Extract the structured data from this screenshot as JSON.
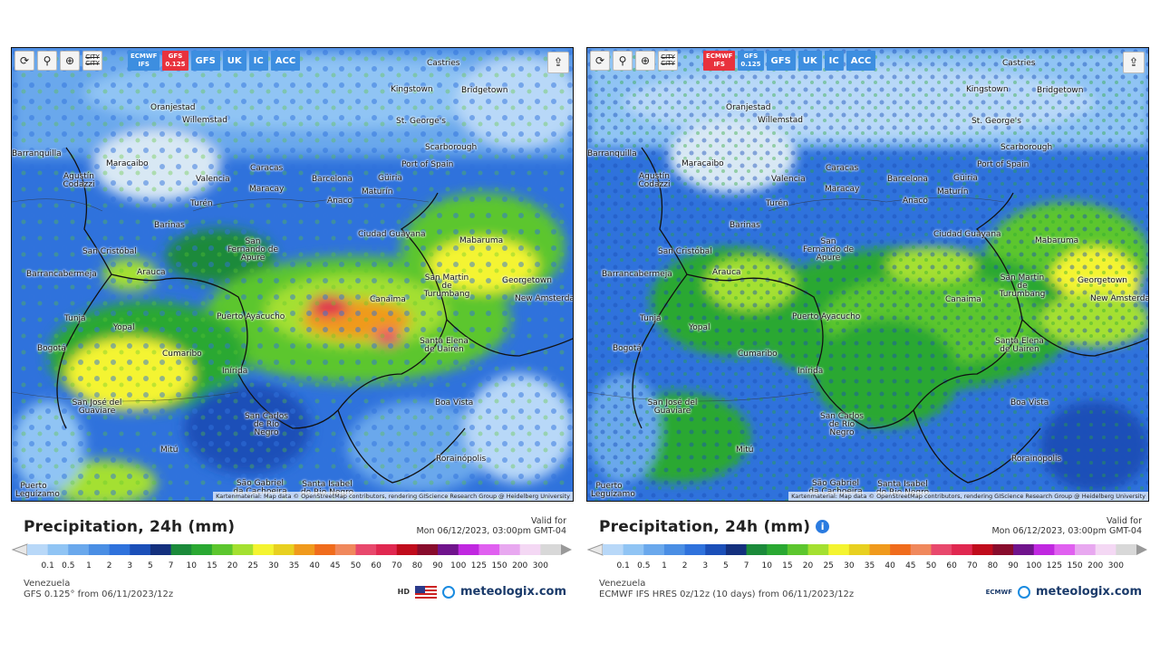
{
  "panels": [
    {
      "id": "gfs",
      "toolbar": {
        "models": [
          {
            "label": "ECMWF IFS",
            "active": false
          },
          {
            "label": "GFS 0.125",
            "active": true
          },
          {
            "label": "GFS",
            "active": false
          },
          {
            "label": "UK",
            "active": false
          },
          {
            "label": "IC",
            "active": false
          },
          {
            "label": "ACC",
            "active": false
          }
        ],
        "city_button_label": "CITY"
      },
      "title": "Precipitation, 24h (mm)",
      "valid_label": "Valid for",
      "valid_time": "Mon 06/12/2023, 03:00pm GMT-04",
      "region": "Venezuela",
      "model_info": "GFS 0.125° from 06/11/2023/12z",
      "brand": "meteologix.com",
      "badge": "HD",
      "attribution": "Kartenmaterial: Map data © OpenStreetMap contributors, rendering GIScience Research Group @ Heidelberg University"
    },
    {
      "id": "ecmwf",
      "toolbar": {
        "models": [
          {
            "label": "ECMWF IFS",
            "active": true
          },
          {
            "label": "GFS 0.125",
            "active": false
          },
          {
            "label": "GFS",
            "active": false
          },
          {
            "label": "UK",
            "active": false
          },
          {
            "label": "IC",
            "active": false
          },
          {
            "label": "ACC",
            "active": false
          }
        ],
        "city_button_label": "CITY"
      },
      "title": "Precipitation, 24h (mm)",
      "valid_label": "Valid for",
      "valid_time": "Mon 06/12/2023, 03:00pm GMT-04",
      "region": "Venezuela",
      "model_info": "ECMWF IFS HRES 0z/12z (10 days) from 06/11/2023/12z",
      "brand": "meteologix.com",
      "badge": "ECMWF",
      "attribution": "Kartenmaterial: Map data © OpenStreetMap contributors, rendering GIScience Research Group @ Heidelberg University"
    }
  ],
  "scale": {
    "ticks": [
      "0.1",
      "0.5",
      "1",
      "2",
      "3",
      "5",
      "7",
      "10",
      "15",
      "20",
      "25",
      "30",
      "35",
      "40",
      "45",
      "50",
      "60",
      "70",
      "80",
      "90",
      "100",
      "125",
      "150",
      "200",
      "300"
    ],
    "colors": [
      "#b8d8f8",
      "#90c4f4",
      "#6aa8ec",
      "#4a8ee4",
      "#2f72dc",
      "#1b4fb8",
      "#14307e",
      "#1b8a3a",
      "#2aa832",
      "#5cc62e",
      "#a4e030",
      "#f4f430",
      "#e8d020",
      "#f09a1c",
      "#f06c1c",
      "#f0885c",
      "#e8486c",
      "#e02850",
      "#c00c1c",
      "#880c2c",
      "#70148c",
      "#c028e0",
      "#e060f0",
      "#e8a8f0",
      "#f4d8f4",
      "#d8d8d8"
    ]
  },
  "cities": [
    {
      "name": "Castries"
    },
    {
      "name": "Kingstown"
    },
    {
      "name": "Bridgetown"
    },
    {
      "name": "Oranjestad"
    },
    {
      "name": "Willemstad"
    },
    {
      "name": "St. George's"
    },
    {
      "name": "Scarborough"
    },
    {
      "name": "Port of Spain"
    },
    {
      "name": "Barranquilla"
    },
    {
      "name": "Maracaibo"
    },
    {
      "name": "Agustín Codazzi"
    },
    {
      "name": "Caracas"
    },
    {
      "name": "Valencia"
    },
    {
      "name": "Maracay"
    },
    {
      "name": "Barcelona"
    },
    {
      "name": "Güiria"
    },
    {
      "name": "Maturín"
    },
    {
      "name": "Anaco"
    },
    {
      "name": "Turén"
    },
    {
      "name": "Barinas"
    },
    {
      "name": "San Fernando de Apure"
    },
    {
      "name": "Ciudad Guayana"
    },
    {
      "name": "Mabaruma"
    },
    {
      "name": "San Cristóbal"
    },
    {
      "name": "Barrancabermeja"
    },
    {
      "name": "Arauca"
    },
    {
      "name": "San Martin de Turumbang"
    },
    {
      "name": "Georgetown"
    },
    {
      "name": "New Amsterdam"
    },
    {
      "name": "Canaima"
    },
    {
      "name": "Tunja"
    },
    {
      "name": "Yopal"
    },
    {
      "name": "Puerto Ayacucho"
    },
    {
      "name": "Bogotá"
    },
    {
      "name": "Cumaribo"
    },
    {
      "name": "Santa Elena de Uairen"
    },
    {
      "name": "Inírida"
    },
    {
      "name": "San José del Guaviare"
    },
    {
      "name": "Boa Vista"
    },
    {
      "name": "San Carlos de Río Negro"
    },
    {
      "name": "Mitú"
    },
    {
      "name": "Rorainópolis"
    },
    {
      "name": "São Gabriel da Cachoeira"
    },
    {
      "name": "Santa Isabel do Rio Negro"
    },
    {
      "name": "Puerto Leguízamo"
    }
  ]
}
